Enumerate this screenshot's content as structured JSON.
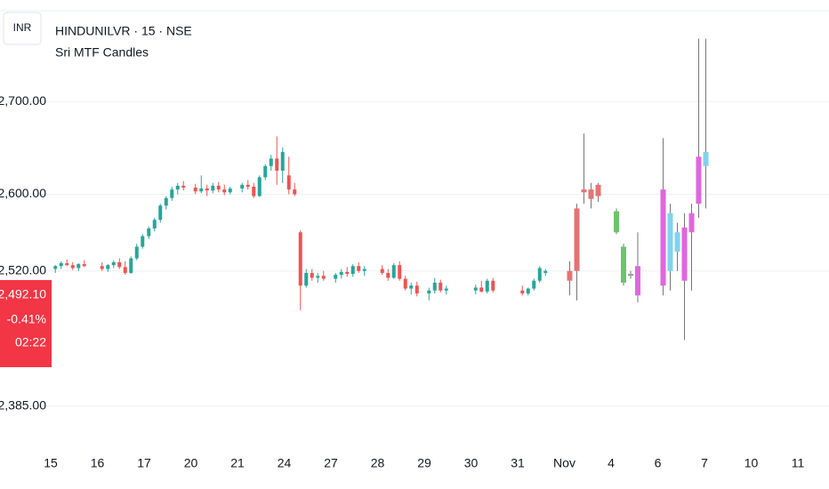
{
  "header": {
    "currency": "INR",
    "symbol": "HINDUNILVR · 15 · NSE",
    "indicator": "Sri MTF Candles"
  },
  "price_tag": {
    "price": "2,492.10",
    "change": "-0.41%",
    "countdown": "02:22",
    "color": "#f23645"
  },
  "chart_data": {
    "type": "candlestick",
    "log_scale": true,
    "grid": true,
    "up_color": "#26a69a",
    "down_color": "#ef5350",
    "ylim": [
      2348,
      2814
    ],
    "yticks": [
      {
        "value": 2700,
        "label": "2,700.00"
      },
      {
        "value": 2600,
        "label": "2,600.00"
      },
      {
        "value": 2520,
        "label": "2,520.00"
      },
      {
        "value": 2385,
        "label": "2,385.00"
      }
    ],
    "days": [
      {
        "label": "15",
        "candles": [
          [
            2522,
            2526,
            2518,
            2525
          ],
          [
            2525,
            2530,
            2522,
            2528
          ],
          [
            2528,
            2532,
            2525,
            2526
          ],
          [
            2526,
            2529,
            2521,
            2523
          ],
          [
            2523,
            2528,
            2520,
            2527
          ],
          [
            2527,
            2531,
            2524,
            2525
          ]
        ]
      },
      {
        "label": "16",
        "candles": [
          [
            2525,
            2529,
            2520,
            2522
          ],
          [
            2522,
            2527,
            2519,
            2526
          ],
          [
            2526,
            2531,
            2523,
            2529
          ],
          [
            2529,
            2533,
            2522,
            2524
          ],
          [
            2524,
            2530,
            2516,
            2518
          ],
          [
            2518,
            2535,
            2517,
            2533
          ],
          [
            2533,
            2548,
            2531,
            2545
          ],
          [
            2545,
            2558,
            2543,
            2556
          ]
        ]
      },
      {
        "label": "17",
        "candles": [
          [
            2556,
            2566,
            2553,
            2564
          ],
          [
            2564,
            2575,
            2561,
            2573
          ],
          [
            2573,
            2590,
            2570,
            2588
          ],
          [
            2588,
            2598,
            2584,
            2596
          ],
          [
            2596,
            2608,
            2593,
            2605
          ],
          [
            2605,
            2612,
            2600,
            2609
          ],
          [
            2609,
            2614,
            2604,
            2607
          ]
        ]
      },
      {
        "label": "20",
        "candles": [
          [
            2607,
            2611,
            2600,
            2603
          ],
          [
            2603,
            2620,
            2601,
            2606
          ],
          [
            2606,
            2610,
            2598,
            2604
          ],
          [
            2604,
            2612,
            2601,
            2609
          ],
          [
            2609,
            2613,
            2602,
            2605
          ],
          [
            2605,
            2610,
            2599,
            2602
          ],
          [
            2602,
            2608,
            2600,
            2606
          ]
        ]
      },
      {
        "label": "21",
        "candles": [
          [
            2606,
            2612,
            2602,
            2610
          ],
          [
            2610,
            2615,
            2605,
            2608
          ],
          [
            2608,
            2612,
            2596,
            2598
          ],
          [
            2598,
            2620,
            2597,
            2618
          ],
          [
            2618,
            2632,
            2615,
            2630
          ],
          [
            2630,
            2642,
            2625,
            2638
          ],
          [
            2638,
            2662,
            2610,
            2625
          ],
          [
            2625,
            2650,
            2612,
            2645
          ]
        ]
      },
      {
        "label": "24",
        "candles": [
          [
            2620,
            2640,
            2600,
            2605
          ],
          [
            2605,
            2612,
            2598,
            2600
          ],
          [
            2560,
            2562,
            2480,
            2505
          ],
          [
            2505,
            2522,
            2503,
            2518
          ],
          [
            2518,
            2522,
            2510,
            2513
          ],
          [
            2513,
            2518,
            2508,
            2515
          ],
          [
            2515,
            2520,
            2510,
            2512
          ]
        ]
      },
      {
        "label": "27",
        "candles": [
          [
            2512,
            2518,
            2508,
            2516
          ],
          [
            2516,
            2522,
            2512,
            2519
          ],
          [
            2519,
            2524,
            2514,
            2517
          ],
          [
            2517,
            2527,
            2514,
            2525
          ],
          [
            2525,
            2529,
            2518,
            2520
          ],
          [
            2520,
            2525,
            2515,
            2522
          ]
        ]
      },
      {
        "label": "28",
        "candles": [
          [
            2522,
            2526,
            2516,
            2518
          ],
          [
            2518,
            2522,
            2510,
            2513
          ],
          [
            2513,
            2528,
            2512,
            2526
          ],
          [
            2526,
            2530,
            2510,
            2512
          ],
          [
            2512,
            2515,
            2500,
            2502
          ],
          [
            2502,
            2508,
            2496,
            2505
          ],
          [
            2505,
            2509,
            2494,
            2497
          ]
        ]
      },
      {
        "label": "29",
        "candles": [
          [
            2497,
            2503,
            2490,
            2500
          ],
          [
            2500,
            2513,
            2497,
            2508
          ],
          [
            2508,
            2511,
            2498,
            2500
          ],
          [
            2500,
            2505,
            2496,
            2502
          ]
        ]
      },
      {
        "label": "30",
        "candles": [
          [
            2500,
            2506,
            2496,
            2503
          ],
          [
            2503,
            2510,
            2498,
            2499
          ],
          [
            2499,
            2512,
            2497,
            2510
          ],
          [
            2510,
            2513,
            2498,
            2500
          ]
        ]
      },
      {
        "label": "31",
        "candles": [
          [
            2500,
            2505,
            2495,
            2497
          ],
          [
            2497,
            2503,
            2495,
            2502
          ],
          [
            2502,
            2512,
            2500,
            2510
          ],
          [
            2510,
            2525,
            2508,
            2523
          ],
          [
            2518,
            2522,
            2515,
            2520
          ]
        ]
      },
      {
        "label": "Nov",
        "candles": [
          [
            2520,
            2530,
            2495,
            2510
          ],
          [
            2520,
            2590,
            2490,
            2585
          ],
          [
            2602,
            2665,
            2590,
            2605
          ],
          [
            2605,
            2612,
            2585,
            2595
          ],
          [
            2598,
            2612,
            2592,
            2610
          ]
        ],
        "colors": [
          "#e57373",
          "#e57373",
          "#e57373",
          "#e57373",
          "#e57373"
        ]
      },
      {
        "label": "4",
        "candles": [
          [
            2582,
            2585,
            2558,
            2560
          ],
          [
            2545,
            2548,
            2505,
            2508
          ],
          [
            2515,
            2520,
            2512,
            2517
          ],
          [
            2525,
            2560,
            2488,
            2495
          ]
        ],
        "colors": [
          "#6cc46c",
          "#6cc46c",
          "#9e9e9e",
          "#e066e0"
        ]
      },
      {
        "label": "6",
        "candles": [
          [
            2505,
            2660,
            2495,
            2605
          ],
          [
            2520,
            2590,
            2500,
            2580
          ],
          [
            2540,
            2570,
            2520,
            2560
          ],
          [
            2510,
            2580,
            2450,
            2565
          ],
          [
            2560,
            2590,
            2500,
            2580
          ],
          [
            2590,
            2770,
            2575,
            2640
          ],
          [
            2630,
            2770,
            2585,
            2645
          ]
        ],
        "colors": [
          "#e066e0",
          "#7fd3ee",
          "#7fd3ee",
          "#e066e0",
          "#e066e0",
          "#e066e0",
          "#7fd3ee"
        ]
      },
      {
        "label": "7",
        "candles": []
      },
      {
        "label": "10",
        "candles": []
      },
      {
        "label": "11",
        "candles": []
      }
    ]
  }
}
